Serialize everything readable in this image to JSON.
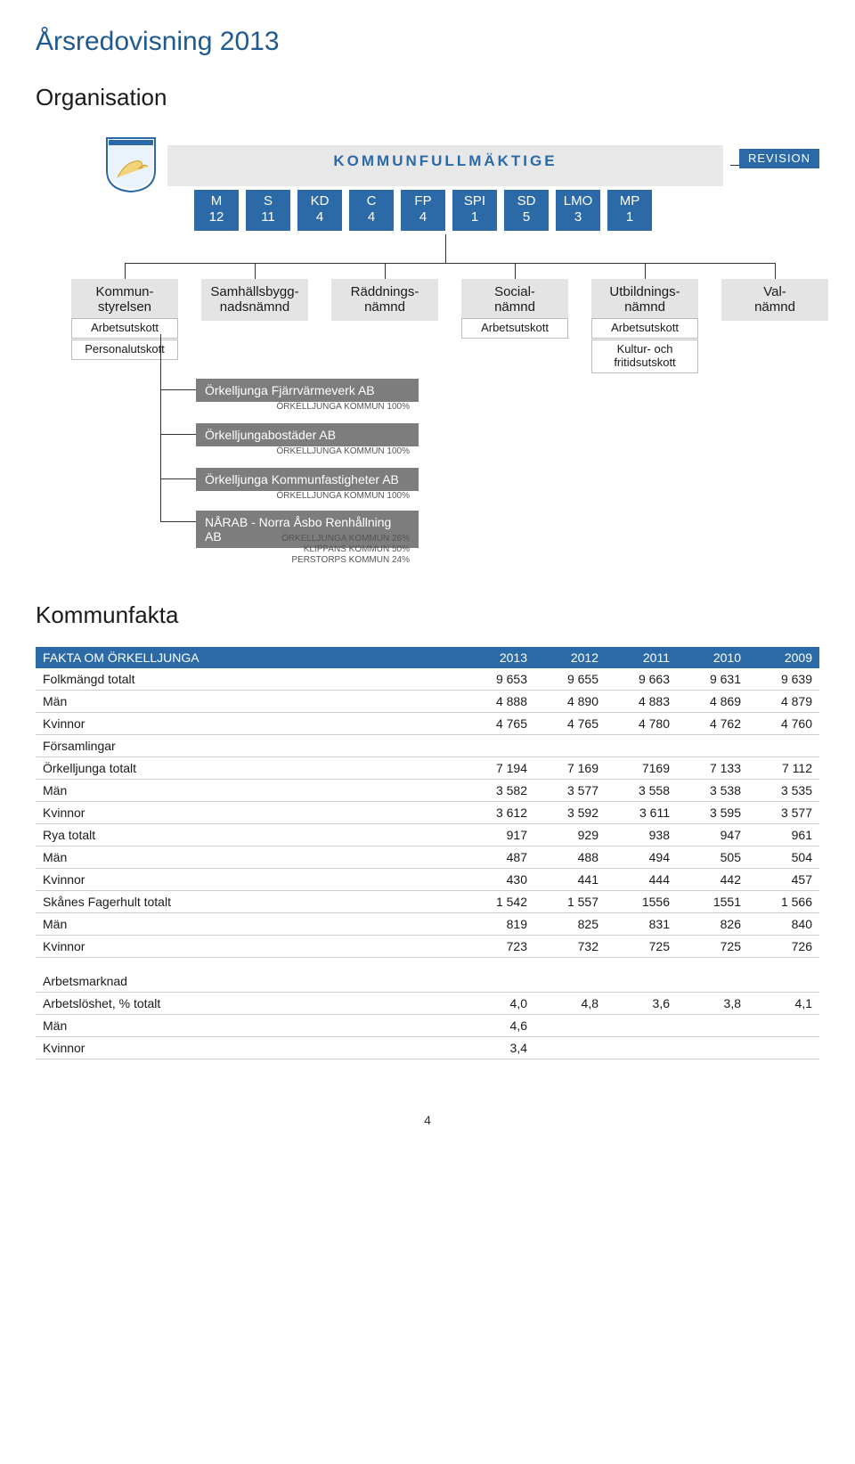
{
  "doc": {
    "title": "Årsredovisning 2013",
    "section1": "Organisation",
    "section2": "Kommunfakta",
    "page_number": "4"
  },
  "colors": {
    "brand_blue": "#2b6aa6",
    "title_blue": "#1e5a8e",
    "grey_box": "#e4e4e4",
    "grey_bar": "#7d7d7d",
    "council_bg": "#e8e8e8"
  },
  "org": {
    "council_title": "KOMMUNFULLMÄKTIGE",
    "revision": "REVISION",
    "parties": [
      {
        "name": "M",
        "count": "12"
      },
      {
        "name": "S",
        "count": "11"
      },
      {
        "name": "KD",
        "count": "4"
      },
      {
        "name": "C",
        "count": "4"
      },
      {
        "name": "FP",
        "count": "4"
      },
      {
        "name": "SPI",
        "count": "1"
      },
      {
        "name": "SD",
        "count": "5"
      },
      {
        "name": "LMO",
        "count": "3"
      },
      {
        "name": "MP",
        "count": "1"
      }
    ],
    "main_boxes": [
      {
        "id": "kommunstyrelsen",
        "l1": "Kommun-",
        "l2": "styrelsen"
      },
      {
        "id": "samhalls",
        "l1": "Samhällsbygg-",
        "l2": "nadsnämnd"
      },
      {
        "id": "raddnings",
        "l1": "Räddnings-",
        "l2": "nämnd"
      },
      {
        "id": "social",
        "l1": "Social-",
        "l2": "nämnd"
      },
      {
        "id": "utbildning",
        "l1": "Utbildnings-",
        "l2": "nämnd"
      },
      {
        "id": "val",
        "l1": "Val-",
        "l2": "nämnd"
      }
    ],
    "sub_boxes": {
      "arbetsutskott": "Arbetsutskott",
      "personalutskott": "Personalutskott",
      "kultur": "Kultur- och\nfritidsutskott"
    },
    "companies": [
      {
        "name": "Örkelljunga Fjärrvärmeverk AB",
        "sub": "ÖRKELLJUNGA KOMMUN 100%"
      },
      {
        "name": "Örkelljungabostäder AB",
        "sub": "ÖRKELLJUNGA KOMMUN 100%"
      },
      {
        "name": "Örkelljunga Kommunfastigheter AB",
        "sub": "ÖRKELLJUNGA KOMMUN 100%"
      },
      {
        "name": "NÅRAB - Norra Åsbo Renhållning AB",
        "sub": "ÖRKELLJUNGA KOMMUN 26%\nKLIPPANS KOMMUN 50%\nPERSTORPS KOMMUN 24%"
      }
    ]
  },
  "facts": {
    "header_label": "FAKTA OM ÖRKELLJUNGA",
    "years": [
      "2013",
      "2012",
      "2011",
      "2010",
      "2009"
    ],
    "groups": [
      {
        "rows": [
          {
            "label": "Folkmängd totalt",
            "v": [
              "9 653",
              "9 655",
              "9 663",
              "9 631",
              "9 639"
            ]
          },
          {
            "label": "Män",
            "v": [
              "4 888",
              "4 890",
              "4 883",
              "4 869",
              "4 879"
            ]
          },
          {
            "label": "Kvinnor",
            "v": [
              "4 765",
              "4 765",
              "4 780",
              "4 762",
              "4 760"
            ]
          },
          {
            "label": "Församlingar",
            "v": [
              "",
              "",
              "",
              "",
              ""
            ]
          },
          {
            "label": "Örkelljunga totalt",
            "v": [
              "7 194",
              "7 169",
              "7169",
              "7 133",
              "7 112"
            ]
          },
          {
            "label": "Män",
            "v": [
              "3 582",
              "3 577",
              "3 558",
              "3 538",
              "3 535"
            ]
          },
          {
            "label": "Kvinnor",
            "v": [
              "3 612",
              "3 592",
              "3 611",
              "3 595",
              "3 577"
            ]
          },
          {
            "label": "Rya totalt",
            "v": [
              "917",
              "929",
              "938",
              "947",
              "961"
            ]
          },
          {
            "label": "Män",
            "v": [
              "487",
              "488",
              "494",
              "505",
              "504"
            ]
          },
          {
            "label": "Kvinnor",
            "v": [
              "430",
              "441",
              "444",
              "442",
              "457"
            ]
          },
          {
            "label": "Skånes Fagerhult totalt",
            "v": [
              "1 542",
              "1 557",
              "1556",
              "1551",
              "1 566"
            ]
          },
          {
            "label": "Män",
            "v": [
              "819",
              "825",
              "831",
              "826",
              "840"
            ]
          },
          {
            "label": "Kvinnor",
            "v": [
              "723",
              "732",
              "725",
              "725",
              "726"
            ]
          }
        ]
      },
      {
        "rows": [
          {
            "label": "Arbetsmarknad",
            "v": [
              "",
              "",
              "",
              "",
              ""
            ]
          },
          {
            "label": "Arbetslöshet, % totalt",
            "v": [
              "4,0",
              "4,8",
              "3,6",
              "3,8",
              "4,1"
            ]
          },
          {
            "label": "Män",
            "v": [
              "4,6",
              "",
              "",
              "",
              ""
            ]
          },
          {
            "label": "Kvinnor",
            "v": [
              "3,4",
              "",
              "",
              "",
              ""
            ]
          }
        ]
      }
    ]
  }
}
